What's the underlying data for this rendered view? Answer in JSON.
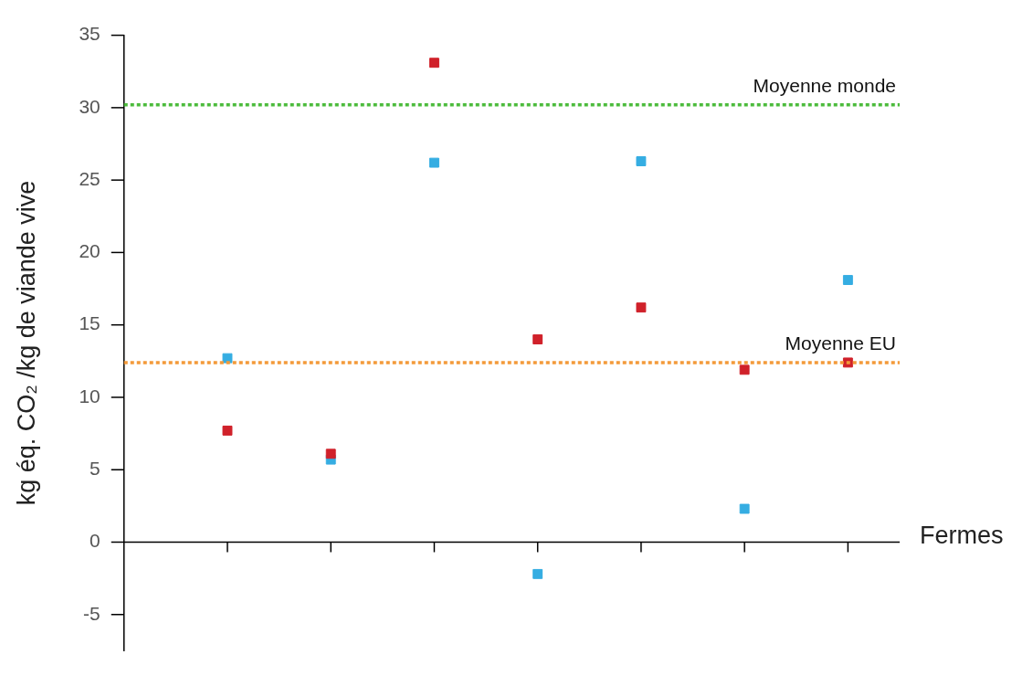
{
  "chart_data": {
    "type": "scatter",
    "xlabel": "Fermes",
    "ylabel": "kg éq. CO₂ /kg de viande vive",
    "categories": [
      null,
      null,
      null,
      null,
      null,
      null,
      null
    ],
    "series": [
      {
        "color": "#d0212a",
        "values": [
          7.7,
          6.1,
          33.1,
          14.0,
          16.2,
          11.9,
          12.4
        ]
      },
      {
        "color": "#35ade2",
        "values": [
          12.7,
          5.7,
          26.2,
          -2.2,
          26.3,
          2.3,
          18.1
        ]
      }
    ],
    "ylim": [
      -7.5,
      35
    ],
    "yticks": [
      -5,
      0,
      5,
      10,
      15,
      20,
      25,
      30,
      35
    ],
    "ref_lines": [
      {
        "axis": "y",
        "value": 30.2,
        "label": "Moyenne monde",
        "color": "#4cbb3c",
        "line_style": "dotted"
      },
      {
        "axis": "y",
        "value": 12.4,
        "label": "Moyenne EU",
        "color": "#f39a3a",
        "line_style": "dotted"
      }
    ],
    "marker": "square"
  }
}
